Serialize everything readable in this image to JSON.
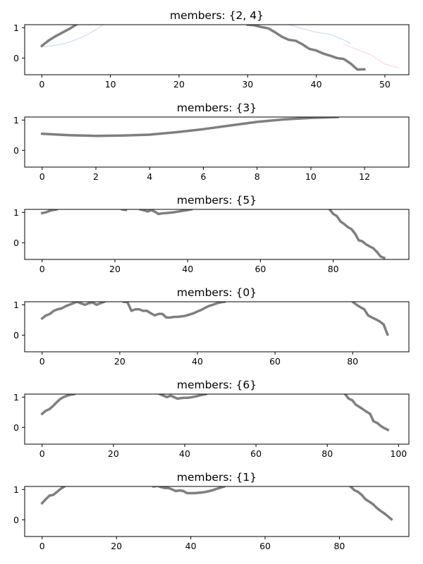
{
  "chart_data": [
    {
      "type": "line",
      "title": "members: {2, 4}",
      "xlabel": "",
      "ylabel": "",
      "xlim": [
        -2.5,
        53.5
      ],
      "ylim": [
        -0.55,
        1.1
      ],
      "xticks": [
        0,
        10,
        20,
        30,
        40,
        50
      ],
      "yticks": [
        0,
        1
      ],
      "series": [
        {
          "color": "#aec7e8",
          "width": 1,
          "alpha": 0.7,
          "x": [
            0,
            2,
            4,
            6,
            8,
            9
          ],
          "y": [
            0.36,
            0.42,
            0.52,
            0.7,
            0.95,
            1.1
          ]
        },
        {
          "color": "#aec7e8",
          "width": 1,
          "alpha": 0.7,
          "x": [
            36,
            38,
            40,
            42,
            44,
            45
          ],
          "y": [
            1.1,
            0.97,
            0.85,
            0.78,
            0.6,
            0.48
          ]
        },
        {
          "color": "#f4b6c2",
          "width": 1,
          "alpha": 0.6,
          "x": [
            44,
            46,
            48,
            50,
            52
          ],
          "y": [
            0.45,
            0.28,
            0.1,
            -0.2,
            -0.32
          ]
        },
        {
          "color": "#7f7f7f",
          "width": 3.5,
          "alpha": 1,
          "x": [
            0,
            1,
            2,
            3,
            4,
            5
          ],
          "y": [
            0.4,
            0.58,
            0.72,
            0.84,
            0.96,
            1.1
          ]
        },
        {
          "color": "#7f7f7f",
          "width": 3.5,
          "alpha": 1,
          "x": [
            30,
            31,
            32,
            33,
            34,
            35,
            36,
            37,
            38,
            39,
            40,
            41,
            42,
            43,
            44,
            45,
            46,
            47
          ],
          "y": [
            1.1,
            1.08,
            1.02,
            0.98,
            0.85,
            0.7,
            0.6,
            0.57,
            0.45,
            0.3,
            0.25,
            0.15,
            0.08,
            0.0,
            -0.03,
            -0.18,
            -0.38,
            -0.37
          ]
        }
      ]
    },
    {
      "type": "line",
      "title": "members: {3}",
      "xlabel": "",
      "ylabel": "",
      "xlim": [
        -0.65,
        13.65
      ],
      "ylim": [
        -0.55,
        1.1
      ],
      "xticks": [
        0,
        2,
        4,
        6,
        8,
        10,
        12
      ],
      "yticks": [
        0,
        1
      ],
      "series": [
        {
          "color": "#7f7f7f",
          "width": 3.5,
          "alpha": 1,
          "x": [
            0,
            1,
            2,
            3,
            4,
            5,
            6,
            7,
            8,
            9,
            10,
            11
          ],
          "y": [
            0.55,
            0.5,
            0.48,
            0.49,
            0.52,
            0.6,
            0.7,
            0.82,
            0.94,
            1.02,
            1.07,
            1.1
          ]
        }
      ]
    },
    {
      "type": "line",
      "title": "members: {5}",
      "xlabel": "",
      "ylabel": "",
      "xlim": [
        -4.8,
        100.8
      ],
      "ylim": [
        -0.55,
        1.1
      ],
      "xticks": [
        0,
        20,
        40,
        60,
        80
      ],
      "yticks": [
        0,
        1
      ],
      "series": [
        {
          "color": "#7f7f7f",
          "width": 3.5,
          "alpha": 1,
          "x": [
            0,
            1,
            2,
            3,
            4
          ],
          "y": [
            0.98,
            1.0,
            1.05,
            1.08,
            1.1
          ]
        },
        {
          "color": "#7f7f7f",
          "width": 3.5,
          "alpha": 1,
          "x": [
            22,
            23
          ],
          "y": [
            1.1,
            1.08
          ]
        },
        {
          "color": "#7f7f7f",
          "width": 3.5,
          "alpha": 1,
          "x": [
            27,
            28,
            29,
            30,
            31,
            32,
            33,
            34,
            35,
            36,
            37,
            38,
            39,
            40,
            41
          ],
          "y": [
            1.1,
            1.07,
            1.03,
            1.08,
            1.02,
            0.95,
            0.97,
            0.98,
            0.99,
            1.0,
            1.02,
            1.04,
            1.06,
            1.08,
            1.1
          ]
        },
        {
          "color": "#7f7f7f",
          "width": 3.5,
          "alpha": 1,
          "x": [
            79,
            80,
            81,
            82,
            83,
            84,
            85,
            86,
            87,
            88,
            89,
            90,
            91,
            92,
            93,
            94
          ],
          "y": [
            1.1,
            0.95,
            0.88,
            0.7,
            0.62,
            0.52,
            0.45,
            0.3,
            0.08,
            0.05,
            -0.05,
            -0.12,
            -0.18,
            -0.3,
            -0.45,
            -0.5
          ]
        }
      ]
    },
    {
      "type": "line",
      "title": "members: {0}",
      "xlabel": "",
      "ylabel": "",
      "xlim": [
        -4.5,
        94.5
      ],
      "ylim": [
        -0.55,
        1.1
      ],
      "xticks": [
        0,
        20,
        40,
        60,
        80
      ],
      "yticks": [
        0,
        1
      ],
      "series": [
        {
          "color": "#7f7f7f",
          "width": 3.5,
          "alpha": 1,
          "x": [
            0,
            1,
            2,
            3,
            4,
            5,
            6,
            7,
            8,
            9,
            10,
            11,
            12,
            13,
            14,
            15,
            16
          ],
          "y": [
            0.55,
            0.65,
            0.7,
            0.8,
            0.85,
            0.88,
            0.95,
            1.0,
            1.05,
            1.1,
            1.05,
            1.0,
            1.05,
            1.08,
            1.0,
            1.05,
            1.1
          ]
        },
        {
          "color": "#7f7f7f",
          "width": 3.5,
          "alpha": 1,
          "x": [
            21,
            22,
            23,
            24,
            25,
            26,
            27,
            28,
            29,
            30,
            31,
            32,
            33,
            34,
            35,
            36,
            37,
            38,
            39,
            40,
            41,
            42,
            43,
            44,
            45,
            46,
            47
          ],
          "y": [
            1.1,
            1.08,
            0.8,
            0.85,
            0.85,
            0.8,
            0.8,
            0.72,
            0.65,
            0.7,
            0.7,
            0.58,
            0.58,
            0.6,
            0.6,
            0.62,
            0.64,
            0.68,
            0.72,
            0.78,
            0.83,
            0.9,
            0.96,
            1.0,
            1.05,
            1.08,
            1.1
          ]
        },
        {
          "color": "#7f7f7f",
          "width": 3.5,
          "alpha": 1,
          "x": [
            80,
            81,
            82,
            83,
            84,
            85,
            86,
            87,
            88,
            89
          ],
          "y": [
            1.1,
            1.0,
            0.92,
            0.85,
            0.65,
            0.58,
            0.52,
            0.45,
            0.35,
            0.02
          ]
        }
      ]
    },
    {
      "type": "line",
      "title": "members: {6}",
      "xlabel": "",
      "ylabel": "",
      "xlim": [
        -4.9,
        102.9
      ],
      "ylim": [
        -0.55,
        1.1
      ],
      "xticks": [
        0,
        20,
        40,
        60,
        80,
        100
      ],
      "yticks": [
        0,
        1
      ],
      "series": [
        {
          "color": "#7f7f7f",
          "width": 3.5,
          "alpha": 1,
          "x": [
            0,
            1,
            2,
            3,
            4,
            5,
            6,
            7,
            8,
            9
          ],
          "y": [
            0.45,
            0.55,
            0.6,
            0.7,
            0.82,
            0.93,
            1.0,
            1.05,
            1.08,
            1.1
          ]
        },
        {
          "color": "#7f7f7f",
          "width": 3.5,
          "alpha": 1,
          "x": [
            33,
            34,
            35,
            36,
            37,
            38,
            39,
            40,
            41,
            42,
            43,
            44,
            45,
            46
          ],
          "y": [
            1.1,
            1.05,
            1.0,
            1.05,
            1.0,
            0.95,
            0.97,
            0.98,
            0.98,
            1.0,
            1.02,
            1.05,
            1.08,
            1.1
          ]
        },
        {
          "color": "#7f7f7f",
          "width": 3.5,
          "alpha": 1,
          "x": [
            85,
            86,
            87,
            88,
            89,
            90,
            91,
            92,
            93,
            94,
            95,
            96,
            97
          ],
          "y": [
            1.1,
            0.95,
            0.9,
            0.75,
            0.68,
            0.6,
            0.52,
            0.45,
            0.2,
            0.15,
            0.05,
            -0.02,
            -0.08
          ]
        }
      ]
    },
    {
      "type": "line",
      "title": "members: {1}",
      "xlabel": "",
      "ylabel": "",
      "xlim": [
        -4.7,
        98.7
      ],
      "ylim": [
        -0.55,
        1.1
      ],
      "xticks": [
        0,
        20,
        40,
        60,
        80
      ],
      "yticks": [
        0,
        1
      ],
      "series": [
        {
          "color": "#7f7f7f",
          "width": 3.5,
          "alpha": 1,
          "x": [
            0,
            1,
            2,
            3,
            4,
            5,
            6
          ],
          "y": [
            0.55,
            0.68,
            0.8,
            0.82,
            0.92,
            1.02,
            1.1
          ]
        },
        {
          "color": "#7f7f7f",
          "width": 3.5,
          "alpha": 1,
          "x": [
            30,
            31,
            32,
            33,
            34,
            35,
            36,
            37,
            38,
            39,
            40,
            41,
            42,
            43,
            44,
            45,
            46,
            47,
            48,
            49
          ],
          "y": [
            1.1,
            1.12,
            1.08,
            1.05,
            1.05,
            1.0,
            0.95,
            0.97,
            0.95,
            0.88,
            0.88,
            0.88,
            0.89,
            0.9,
            0.92,
            0.95,
            0.98,
            1.02,
            1.06,
            1.1
          ]
        },
        {
          "color": "#7f7f7f",
          "width": 3.5,
          "alpha": 1,
          "x": [
            83,
            84,
            85,
            86,
            87,
            88,
            89,
            90,
            91,
            92,
            93,
            94
          ],
          "y": [
            1.1,
            0.98,
            0.92,
            0.82,
            0.68,
            0.6,
            0.52,
            0.4,
            0.3,
            0.22,
            0.12,
            0.02
          ]
        }
      ]
    }
  ]
}
